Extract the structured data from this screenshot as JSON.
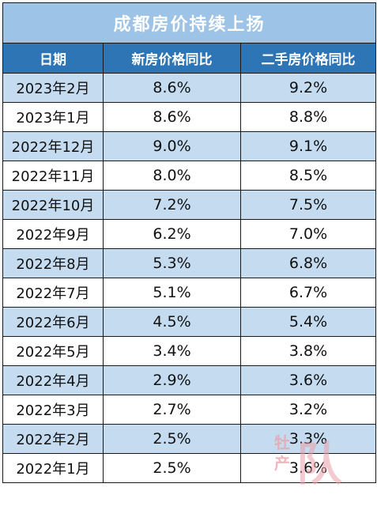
{
  "chart_data": {
    "type": "table",
    "title": "成都房价持续上扬",
    "columns": [
      "日期",
      "新房价格同比",
      "二手房价格同比"
    ],
    "rows": [
      {
        "date": "2023年2月",
        "new_home": "8.6%",
        "second_hand": "9.2%"
      },
      {
        "date": "2023年1月",
        "new_home": "8.6%",
        "second_hand": "8.8%"
      },
      {
        "date": "2022年12月",
        "new_home": "9.0%",
        "second_hand": "9.1%"
      },
      {
        "date": "2022年11月",
        "new_home": "8.0%",
        "second_hand": "8.5%"
      },
      {
        "date": "2022年10月",
        "new_home": "7.2%",
        "second_hand": "7.5%"
      },
      {
        "date": "2022年9月",
        "new_home": "6.2%",
        "second_hand": "7.0%"
      },
      {
        "date": "2022年8月",
        "new_home": "5.3%",
        "second_hand": "6.8%"
      },
      {
        "date": "2022年7月",
        "new_home": "5.1%",
        "second_hand": "6.7%"
      },
      {
        "date": "2022年6月",
        "new_home": "4.5%",
        "second_hand": "5.4%"
      },
      {
        "date": "2022年5月",
        "new_home": "3.4%",
        "second_hand": "3.8%"
      },
      {
        "date": "2022年4月",
        "new_home": "2.9%",
        "second_hand": "3.6%"
      },
      {
        "date": "2022年3月",
        "new_home": "2.7%",
        "second_hand": "3.2%"
      },
      {
        "date": "2022年2月",
        "new_home": "2.5%",
        "second_hand": "3.3%"
      },
      {
        "date": "2022年1月",
        "new_home": "2.5%",
        "second_hand": "3.6%"
      }
    ]
  },
  "watermark": {
    "line1": "牡",
    "line2": "产",
    "mark": "队"
  },
  "colors": {
    "title_bg": "#9dc3e6",
    "header_bg": "#2e75b6",
    "alt_row_bg": "#c5dcf0",
    "watermark": "#e8a0a8"
  }
}
